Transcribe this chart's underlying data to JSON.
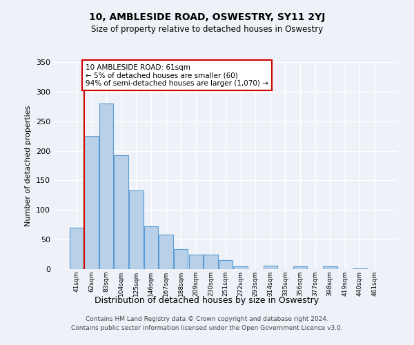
{
  "title": "10, AMBLESIDE ROAD, OSWESTRY, SY11 2YJ",
  "subtitle": "Size of property relative to detached houses in Oswestry",
  "xlabel": "Distribution of detached houses by size in Oswestry",
  "ylabel": "Number of detached properties",
  "bar_labels": [
    "41sqm",
    "62sqm",
    "83sqm",
    "104sqm",
    "125sqm",
    "146sqm",
    "167sqm",
    "188sqm",
    "209sqm",
    "230sqm",
    "251sqm",
    "272sqm",
    "293sqm",
    "314sqm",
    "335sqm",
    "356sqm",
    "377sqm",
    "398sqm",
    "419sqm",
    "440sqm",
    "461sqm"
  ],
  "bar_values": [
    70,
    225,
    280,
    193,
    133,
    72,
    58,
    34,
    25,
    25,
    15,
    5,
    0,
    6,
    0,
    5,
    0,
    5,
    0,
    1,
    0
  ],
  "bar_color": "#b8d0e8",
  "bar_edge_color": "#5b9bd5",
  "property_line_color": "#cc0000",
  "ylim": [
    0,
    350
  ],
  "yticks": [
    0,
    50,
    100,
    150,
    200,
    250,
    300,
    350
  ],
  "annotation_text": "10 AMBLESIDE ROAD: 61sqm\n← 5% of detached houses are smaller (60)\n94% of semi-detached houses are larger (1,070) →",
  "annotation_box_color": "#ffffff",
  "annotation_box_edge": "#cc0000",
  "footer_line1": "Contains HM Land Registry data © Crown copyright and database right 2024.",
  "footer_line2": "Contains public sector information licensed under the Open Government Licence v3.0.",
  "bg_color": "#eef2f8"
}
